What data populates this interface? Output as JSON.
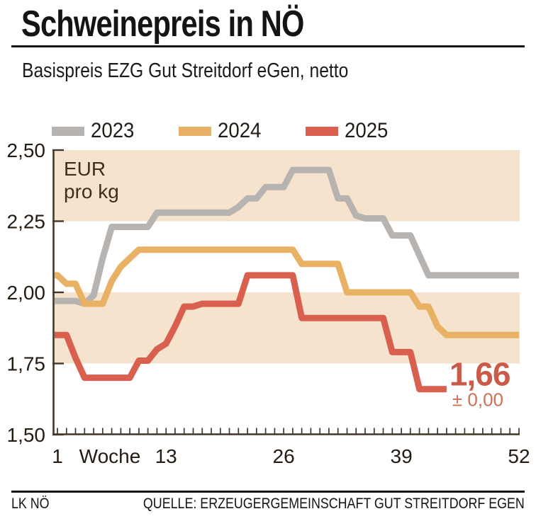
{
  "header": {
    "title": "Schweinepreis in NÖ",
    "subtitle": "Basispreis EZG Gut Streitdorf eGen, netto"
  },
  "legend": [
    {
      "label": "2023",
      "color": "#b7b3b0"
    },
    {
      "label": "2024",
      "color": "#e9b164"
    },
    {
      "label": "2025",
      "color": "#d95f4e"
    }
  ],
  "chart_data": {
    "type": "line",
    "title": "Schweinepreis in NÖ",
    "ylabel_lines": [
      "EUR",
      "pro kg"
    ],
    "xlabel": "Woche",
    "xlim": [
      1,
      52
    ],
    "ylim": [
      1.5,
      2.5
    ],
    "grid": false,
    "legend_position": "top",
    "band_color": "#f6e3cd",
    "bands": [
      [
        2.25,
        2.5
      ],
      [
        1.75,
        2.0
      ]
    ],
    "axis_color": "#43372a",
    "y_ticks": [
      {
        "value": 2.5,
        "label": "2,50"
      },
      {
        "value": 2.25,
        "label": "2,25"
      },
      {
        "value": 2.0,
        "label": "2,00"
      },
      {
        "value": 1.75,
        "label": "1,75"
      },
      {
        "value": 1.5,
        "label": "1,50"
      }
    ],
    "x_labels": [
      {
        "week": 1,
        "label": "1"
      },
      {
        "week": 6.8,
        "label": "Woche"
      },
      {
        "week": 13,
        "label": "13"
      },
      {
        "week": 26,
        "label": "26"
      },
      {
        "week": 39,
        "label": "39"
      },
      {
        "week": 52,
        "label": "52"
      }
    ],
    "series": [
      {
        "name": "2023",
        "color": "#b7b3b0",
        "start_week": 1,
        "values": [
          1.97,
          1.97,
          1.97,
          1.96,
          1.99,
          2.12,
          2.23,
          2.23,
          2.23,
          2.23,
          2.23,
          2.28,
          2.28,
          2.28,
          2.28,
          2.28,
          2.28,
          2.28,
          2.28,
          2.28,
          2.3,
          2.33,
          2.33,
          2.37,
          2.37,
          2.37,
          2.43,
          2.43,
          2.43,
          2.43,
          2.43,
          2.33,
          2.33,
          2.27,
          2.26,
          2.26,
          2.26,
          2.2,
          2.2,
          2.2,
          2.13,
          2.06,
          2.06,
          2.06,
          2.06,
          2.06,
          2.06,
          2.06,
          2.06,
          2.06,
          2.06,
          2.06
        ]
      },
      {
        "name": "2024",
        "color": "#e9b164",
        "start_week": 1,
        "values": [
          2.06,
          2.03,
          2.03,
          1.96,
          1.96,
          1.96,
          2.04,
          2.09,
          2.12,
          2.15,
          2.15,
          2.15,
          2.15,
          2.15,
          2.15,
          2.15,
          2.15,
          2.15,
          2.15,
          2.15,
          2.15,
          2.15,
          2.15,
          2.15,
          2.15,
          2.15,
          2.15,
          2.1,
          2.1,
          2.1,
          2.1,
          2.1,
          2.0,
          2.0,
          2.0,
          2.0,
          2.0,
          2.0,
          2.0,
          2.0,
          1.95,
          1.95,
          1.88,
          1.85,
          1.85,
          1.85,
          1.85,
          1.85,
          1.85,
          1.85,
          1.85,
          1.85
        ]
      },
      {
        "name": "2025",
        "color": "#d95f4e",
        "start_week": 1,
        "values": [
          1.85,
          1.85,
          1.77,
          1.7,
          1.7,
          1.7,
          1.7,
          1.7,
          1.7,
          1.76,
          1.76,
          1.8,
          1.82,
          1.88,
          1.95,
          1.95,
          1.96,
          1.96,
          1.96,
          1.96,
          1.96,
          2.06,
          2.06,
          2.06,
          2.06,
          2.06,
          2.06,
          1.91,
          1.91,
          1.91,
          1.91,
          1.91,
          1.91,
          1.91,
          1.91,
          1.91,
          1.91,
          1.79,
          1.79,
          1.79,
          1.66,
          1.66,
          1.66,
          1.66
        ]
      }
    ],
    "annotation": {
      "value": "1,66",
      "delta": "± 0,00",
      "value_color": "#cb5b49",
      "delta_color": "#cf7058"
    }
  },
  "footer": {
    "left": "LK NÖ",
    "right": "QUELLE: ERZEUGERGEMEINSCHAFT GUT STREITDORF EGEN"
  }
}
